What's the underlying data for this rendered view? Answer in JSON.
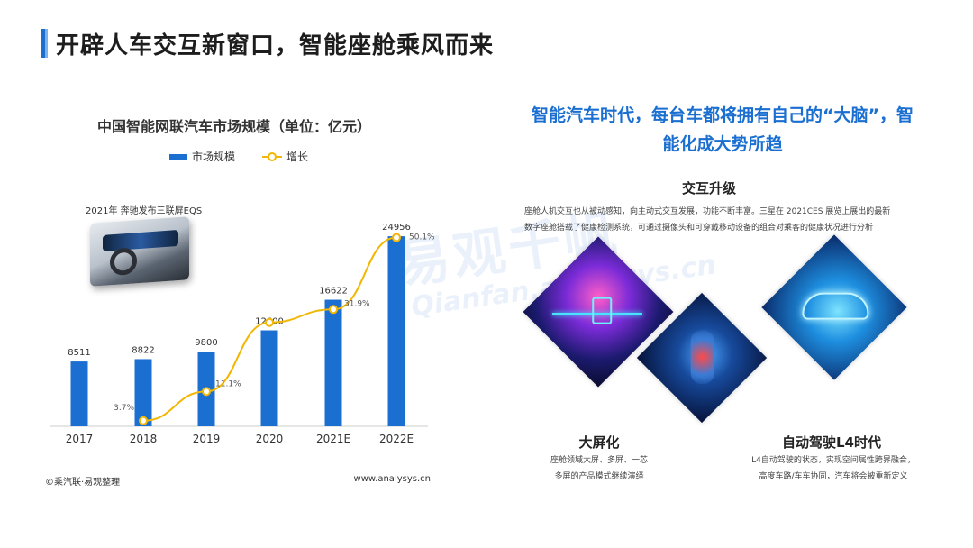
{
  "page": {
    "title": "开辟人车交互新窗口，智能座舱乘风而来"
  },
  "left_panel": {
    "car_caption": "2021年 奔驰发布三联屏EQS",
    "source": "©乘汽联·易观整理",
    "site": "www.analysys.cn"
  },
  "chart_data": {
    "type": "bar",
    "title": "中国智能网联汽车市场规模（单位：亿元）",
    "categories": [
      "2017",
      "2018",
      "2019",
      "2020",
      "2021E",
      "2022E"
    ],
    "series": [
      {
        "name": "市场规模",
        "kind": "bar",
        "values": [
          8511,
          8822,
          9800,
          12600,
          16622,
          24956
        ],
        "value_labels": [
          "8511",
          "8822",
          "9800",
          "12600",
          "16622",
          "24956"
        ]
      },
      {
        "name": "增长",
        "kind": "line",
        "values": [
          null,
          3.7,
          11.1,
          28.6,
          31.9,
          50.1
        ],
        "value_labels": [
          "",
          "3.7%",
          "11.1%",
          "",
          "31.9%",
          "50.1%"
        ]
      }
    ],
    "legend_position": "top",
    "grid": false,
    "colors": {
      "bar": "#1a6fd1",
      "line": "#f2b705"
    }
  },
  "right_panel": {
    "headline_line1": "智能汽车时代，每台车都将拥有自己的“大脑”，智",
    "headline_line2": "能化成大势所趋",
    "interaction": {
      "title": "交互升级",
      "text_line1": "座舱人机交互也从被动感知，向主动式交互发展，功能不断丰富。三星在 2021CES 展览上展出的最新",
      "text_line2": "数字座舱搭载了健康检测系统，可通过摄像头和可穿戴移动设备的组合对乘客的健康状况进行分析"
    },
    "big_screen": {
      "title": "大屏化",
      "text_line1": "座舱领域大屏、多屏、一芯",
      "text_line2": "多屏的产品模式继续演绎"
    },
    "autonomous": {
      "title": "自动驾驶L4时代",
      "text_line1": "L4自动驾驶的状态，实现空间属性跨界融合，",
      "text_line2": "高度车路/车车协同，汽车将会被重新定义"
    }
  },
  "watermark": {
    "line1": "易观千帆",
    "line2": "Qianfan.analysys.cn"
  },
  "colors": {
    "accent": "#1a6fd1",
    "title_text": "#1d1d1d"
  }
}
